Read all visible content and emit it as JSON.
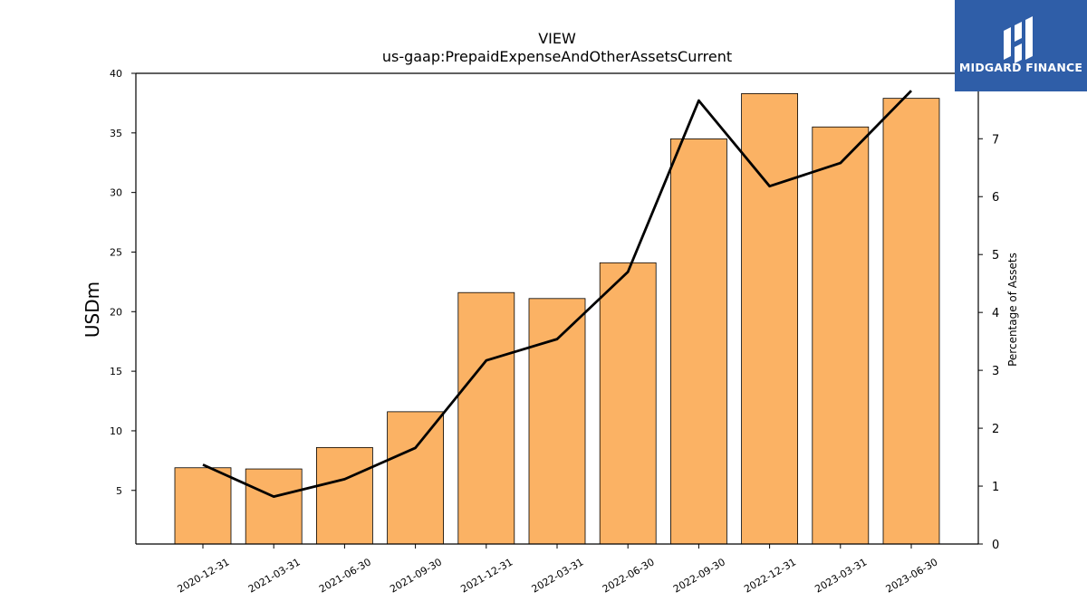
{
  "brand": {
    "name": "MIDGARD FINANCE",
    "bg_color": "#2f5ea8",
    "icon": "midgard-logo-icon"
  },
  "chart_data": {
    "type": "bar",
    "title": "VIEW",
    "subtitle": "us-gaap:PrepaidExpenseAndOtherAssetsCurrent",
    "xlabel": "",
    "ylabel": "USDm",
    "y2label": "Percentage of Assets",
    "ylim": [
      0.5,
      40
    ],
    "y2lim": [
      0,
      8.13
    ],
    "yticks": [
      "5",
      "10",
      "15",
      "20",
      "25",
      "30",
      "35",
      "40"
    ],
    "y2ticks": [
      "0",
      "1",
      "2",
      "3",
      "4",
      "5",
      "6",
      "7"
    ],
    "grid": false,
    "categories": [
      "2020-12-31",
      "2021-03-31",
      "2021-06-30",
      "2021-09-30",
      "2021-12-31",
      "2022-03-31",
      "2022-06-30",
      "2022-09-30",
      "2022-12-31",
      "2023-03-31",
      "2023-06-30"
    ],
    "series": [
      {
        "type": "bar",
        "axis": "left",
        "color": "#fbb264",
        "values": [
          6.9,
          6.8,
          8.6,
          11.6,
          21.6,
          21.1,
          24.1,
          34.5,
          38.3,
          35.5,
          37.9
        ]
      },
      {
        "type": "line",
        "axis": "right",
        "color": "#000000",
        "values": [
          1.37,
          0.82,
          1.12,
          1.66,
          3.17,
          3.54,
          4.7,
          7.66,
          6.18,
          6.58,
          7.83
        ]
      }
    ]
  }
}
